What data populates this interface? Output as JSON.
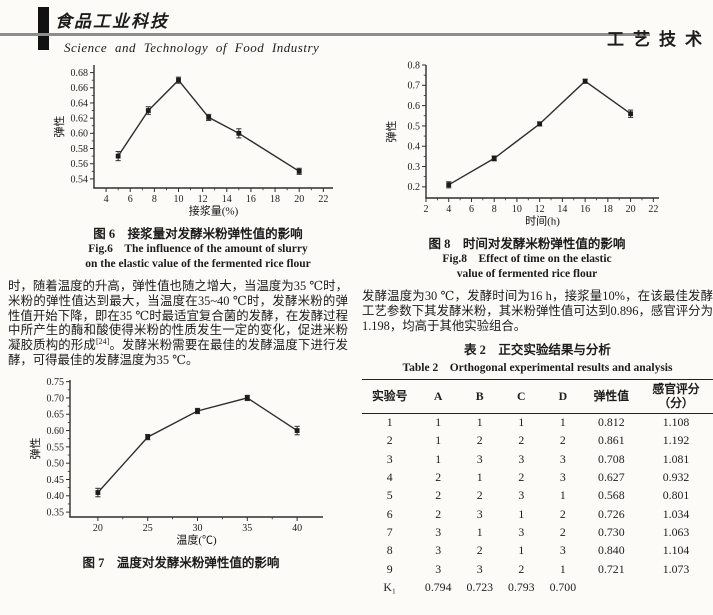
{
  "page": {
    "journal_logo": "食品工业科技",
    "journal_name_en": "Science and Technology of Food Industry",
    "section_label": "工艺技术"
  },
  "figures": {
    "fig6": {
      "caption_cn": "图 6　接浆量对发酵米粉弹性值的影响",
      "caption_en_line1": "Fig.6　The influence of the amount of slurry",
      "caption_en_line2": "on the elastic value of the fermented rice flour"
    },
    "fig7": {
      "caption_cn": "图 7　温度对发酵米粉弹性值的影响"
    },
    "fig8": {
      "caption_cn": "图 8　时间对发酵米粉弹性值的影响",
      "caption_en_line1": "Fig.8　Effect of time on the elastic",
      "caption_en_line2": "value of fermented rice flour"
    }
  },
  "paragraphs": {
    "left": {
      "part1": "时，随着温度的升高，弹性值也随之增大，当温度为35 ℃时，米粉的弹性值达到最大，当温度在35~40 ℃时，发酵米粉的弹性值开始下降，即在35 ℃时最适宜复合菌的发酵，在发酵过程中所产生的酶和酸使得米粉的性质发生一定的变化，促进米粉凝胶质构的形成",
      "ref": "[24]",
      "part2": "。发酵米粉需要在最佳的发酵温度下进行发酵，可得最佳的发酵温度为35 ℃。"
    },
    "right": "发酵温度为30 ℃，发酵时间为16 h，接浆量10%，在该最佳发酵工艺参数下其发酵米粉，其米粉弹性值可达到0.896，感官评分为1.198，均高于其他实验组合。"
  },
  "table": {
    "caption_cn": "表 2　正交实验结果与分析",
    "caption_en": "Table 2　Orthogonal experimental results and analysis",
    "headers": [
      "实验号",
      "A",
      "B",
      "C",
      "D",
      "弹性值"
    ],
    "header_last": {
      "line1": "感官评分",
      "line2": "（分）"
    },
    "rows": [
      [
        "1",
        "1",
        "1",
        "1",
        "1",
        "0.812",
        "1.108"
      ],
      [
        "2",
        "1",
        "2",
        "2",
        "2",
        "0.861",
        "1.192"
      ],
      [
        "3",
        "1",
        "3",
        "3",
        "3",
        "0.708",
        "1.081"
      ],
      [
        "4",
        "2",
        "1",
        "2",
        "3",
        "0.627",
        "0.932"
      ],
      [
        "5",
        "2",
        "2",
        "3",
        "1",
        "0.568",
        "0.801"
      ],
      [
        "6",
        "2",
        "3",
        "1",
        "2",
        "0.726",
        "1.034"
      ],
      [
        "7",
        "3",
        "1",
        "3",
        "2",
        "0.730",
        "1.063"
      ],
      [
        "8",
        "3",
        "2",
        "1",
        "3",
        "0.840",
        "1.104"
      ],
      [
        "9",
        "3",
        "3",
        "2",
        "1",
        "0.721",
        "1.073"
      ],
      [
        "K₁",
        "0.794",
        "0.723",
        "0.793",
        "0.700",
        "",
        ""
      ]
    ]
  },
  "chart_data": [
    {
      "type": "line",
      "title": "图6 接浆量对发酵米粉弹性值的影响",
      "xlabel": "接浆量(%)",
      "ylabel": "弹性",
      "x": [
        5,
        7.5,
        10,
        12.5,
        15,
        20
      ],
      "y": [
        0.57,
        0.63,
        0.67,
        0.621,
        0.6,
        0.55
      ],
      "yerr": [
        0.006,
        0.005,
        0.004,
        0.004,
        0.006,
        0.004
      ],
      "xticks": [
        4,
        6,
        8,
        10,
        12,
        14,
        16,
        18,
        20,
        22
      ],
      "yticks": [
        0.54,
        0.56,
        0.58,
        0.6,
        0.62,
        0.64,
        0.66,
        0.68
      ],
      "xlim": [
        3,
        22.8
      ],
      "ylim": [
        0.528,
        0.69
      ],
      "ydec": 2,
      "grid": false,
      "marker": "square",
      "series_color": "#2e2e2e"
    },
    {
      "type": "line",
      "title": "图8 时间对发酵米粉弹性值的影响",
      "xlabel": "时间(h)",
      "ylabel": "弹性",
      "x": [
        4,
        8,
        12,
        16,
        20
      ],
      "y": [
        0.21,
        0.34,
        0.51,
        0.72,
        0.56
      ],
      "yerr": [
        0.015,
        0.012,
        0.01,
        0.01,
        0.018
      ],
      "xticks": [
        2,
        4,
        6,
        8,
        10,
        12,
        14,
        16,
        18,
        20,
        22
      ],
      "yticks": [
        0.2,
        0.3,
        0.4,
        0.5,
        0.6,
        0.7,
        0.8
      ],
      "xlim": [
        2,
        22.5
      ],
      "ylim": [
        0.145,
        0.8
      ],
      "ydec": 1,
      "grid": false,
      "marker": "square",
      "series_color": "#2e2e2e"
    },
    {
      "type": "line",
      "title": "图7 温度对发酵米粉弹性值的影响",
      "xlabel": "温度(℃)",
      "ylabel": "弹性",
      "x": [
        20,
        25,
        30,
        35,
        40
      ],
      "y": [
        0.41,
        0.58,
        0.66,
        0.7,
        0.6
      ],
      "yerr": [
        0.013,
        0.008,
        0.008,
        0.008,
        0.013
      ],
      "xticks": [
        20,
        25,
        30,
        35,
        40
      ],
      "yticks": [
        0.35,
        0.4,
        0.45,
        0.5,
        0.55,
        0.6,
        0.65,
        0.7,
        0.75
      ],
      "xlim": [
        17.2,
        42.6
      ],
      "ylim": [
        0.335,
        0.755
      ],
      "ydec": 2,
      "grid": false,
      "marker": "square",
      "series_color": "#2e2e2e"
    }
  ]
}
